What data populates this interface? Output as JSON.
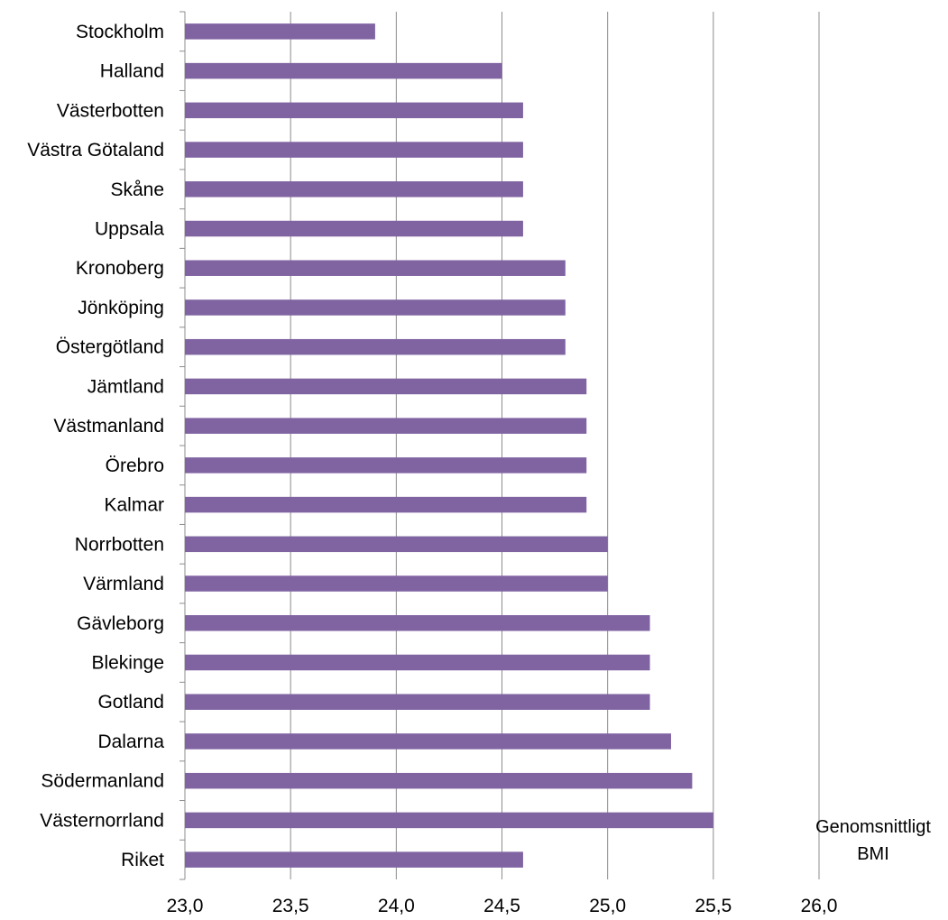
{
  "chart_data": {
    "type": "bar",
    "orientation": "horizontal",
    "categories": [
      "Stockholm",
      "Halland",
      "Västerbotten",
      "Västra Götaland",
      "Skåne",
      "Uppsala",
      "Kronoberg",
      "Jönköping",
      "Östergötland",
      "Jämtland",
      "Västmanland",
      "Örebro",
      "Kalmar",
      "Norrbotten",
      "Värmland",
      "Gävleborg",
      "Blekinge",
      "Gotland",
      "Dalarna",
      "Södermanland",
      "Västernorrland",
      "Riket"
    ],
    "values": [
      23.9,
      24.5,
      24.6,
      24.6,
      24.6,
      24.6,
      24.8,
      24.8,
      24.8,
      24.9,
      24.9,
      24.9,
      24.9,
      25.0,
      25.0,
      25.2,
      25.2,
      25.2,
      25.3,
      25.4,
      25.5,
      24.6
    ],
    "title": "",
    "xlabel": "",
    "ylabel": "",
    "xlim": [
      23.0,
      26.0
    ],
    "xticks": [
      "23,0",
      "23,5",
      "24,0",
      "24,5",
      "25,0",
      "25,5",
      "26,0"
    ],
    "grid": "vertical",
    "bar_color": "#8064A2",
    "annotation": [
      "Genomsnittligt",
      "BMI"
    ]
  }
}
